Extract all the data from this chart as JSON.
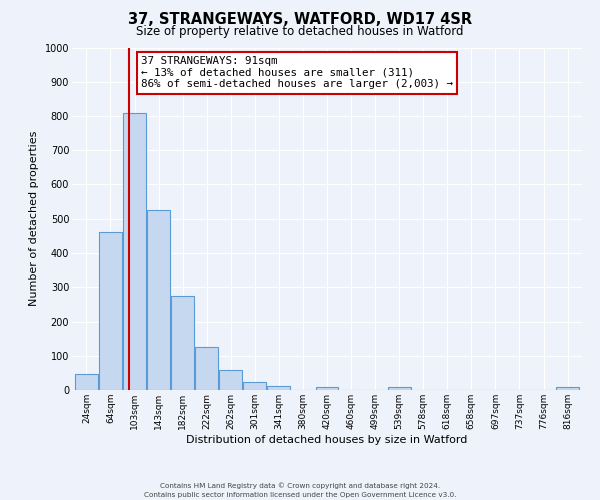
{
  "title": "37, STRANGEWAYS, WATFORD, WD17 4SR",
  "subtitle": "Size of property relative to detached houses in Watford",
  "xlabel": "Distribution of detached houses by size in Watford",
  "ylabel": "Number of detached properties",
  "bar_labels": [
    "24sqm",
    "64sqm",
    "103sqm",
    "143sqm",
    "182sqm",
    "222sqm",
    "262sqm",
    "301sqm",
    "341sqm",
    "380sqm",
    "420sqm",
    "460sqm",
    "499sqm",
    "539sqm",
    "578sqm",
    "618sqm",
    "658sqm",
    "697sqm",
    "737sqm",
    "776sqm",
    "816sqm"
  ],
  "bar_heights": [
    47,
    460,
    810,
    525,
    275,
    125,
    58,
    22,
    13,
    0,
    10,
    0,
    0,
    10,
    0,
    0,
    0,
    0,
    0,
    0,
    10
  ],
  "bar_color": "#c5d8f0",
  "bar_edge_color": "#5b9bd5",
  "ylim": [
    0,
    1000
  ],
  "yticks": [
    0,
    100,
    200,
    300,
    400,
    500,
    600,
    700,
    800,
    900,
    1000
  ],
  "vline_color": "#cc0000",
  "annotation_box_edge_color": "#cc0000",
  "annotation_title": "37 STRANGEWAYS: 91sqm",
  "annotation_line1": "← 13% of detached houses are smaller (311)",
  "annotation_line2": "86% of semi-detached houses are larger (2,003) →",
  "footer_line1": "Contains HM Land Registry data © Crown copyright and database right 2024.",
  "footer_line2": "Contains public sector information licensed under the Open Government Licence v3.0.",
  "background_color": "#eef2fa",
  "grid_color": "#ffffff",
  "vline_x_index": 1.75,
  "fig_width": 6.0,
  "fig_height": 5.0
}
